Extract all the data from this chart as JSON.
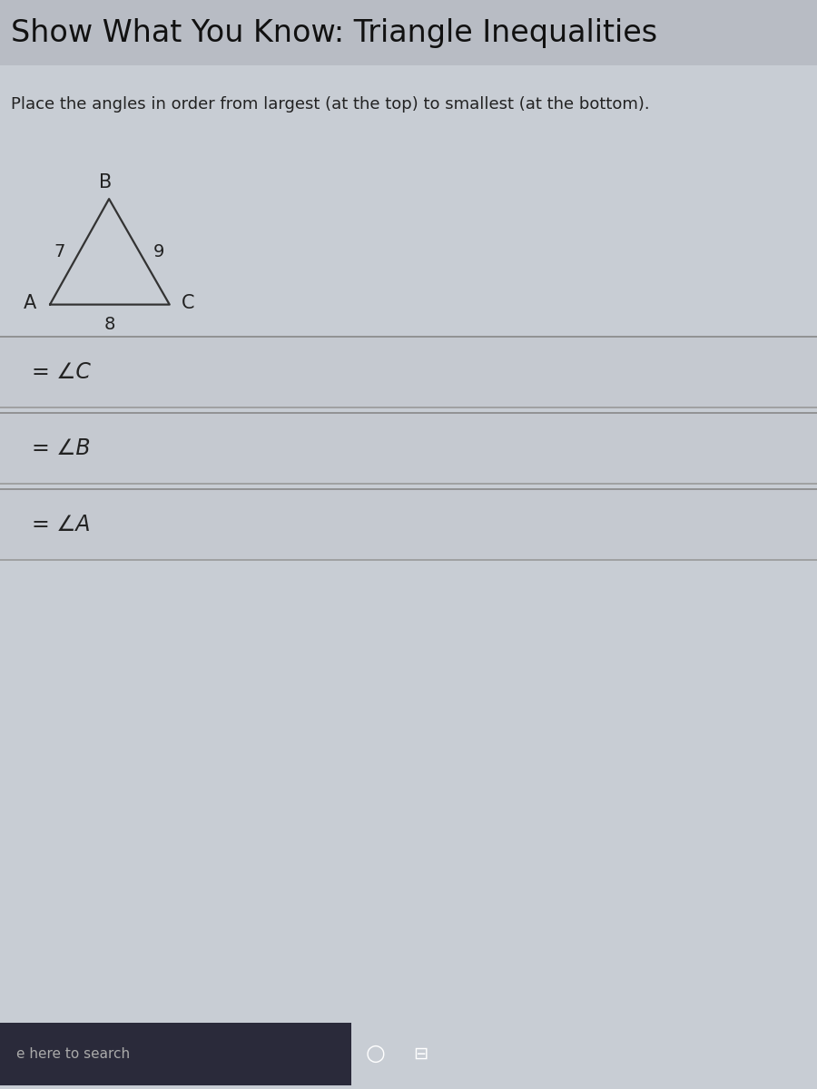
{
  "title": "Show What You Know: Triangle Inequalities",
  "subtitle": "Place the angles in order from largest (at the top) to smallest (at the bottom).",
  "triangle": {
    "A": [
      0.0,
      0.0
    ],
    "B": [
      0.42,
      0.75
    ],
    "C": [
      0.85,
      0.0
    ],
    "side_AB": "7",
    "side_BC": "9",
    "side_AC": "8"
  },
  "answer_rows": [
    "= ∠C",
    "= ∠B",
    "= ∠A"
  ],
  "bg_color": "#c8cdd4",
  "title_bg": "#b8bcc4",
  "content_bg": "#c8cdd4",
  "row_bg": "#c5c9d0",
  "row_border_top": "#888888",
  "row_border_bottom": "#999999",
  "title_color": "#111111",
  "text_color": "#222222",
  "triangle_color": "#333333",
  "taskbar_color": "#1c1c2a",
  "taskbar_search_text": "e here to search",
  "font_size_title": 24,
  "font_size_subtitle": 13,
  "font_size_row": 17,
  "font_size_vertex": 15,
  "font_size_side": 14
}
